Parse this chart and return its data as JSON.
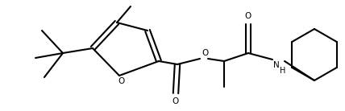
{
  "background_color": "#ffffff",
  "line_color": "#000000",
  "line_width": 1.5,
  "figsize": [
    4.28,
    1.38
  ],
  "dpi": 100,
  "xlim": [
    0,
    428
  ],
  "ylim": [
    0,
    138
  ]
}
